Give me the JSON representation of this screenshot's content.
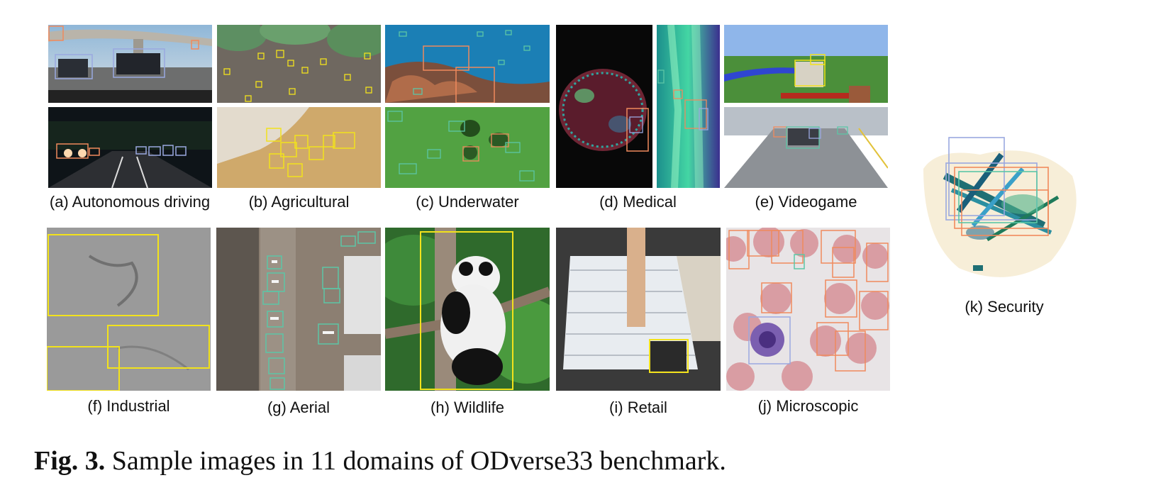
{
  "figure": {
    "label": "Fig. 3.",
    "text": "Sample images in 11 domains of ODverse33 benchmark."
  },
  "panels": [
    {
      "id": "a",
      "caption": "(a) Autonomous driving"
    },
    {
      "id": "b",
      "caption": "(b) Agricultural"
    },
    {
      "id": "c",
      "caption": "(c) Underwater"
    },
    {
      "id": "d",
      "caption": "(d) Medical"
    },
    {
      "id": "e",
      "caption": "(e) Videogame"
    },
    {
      "id": "f",
      "caption": "(f) Industrial"
    },
    {
      "id": "g",
      "caption": "(g) Aerial"
    },
    {
      "id": "h",
      "caption": "(h) Wildlife"
    },
    {
      "id": "i",
      "caption": "(i) Retail"
    },
    {
      "id": "j",
      "caption": "(j) Microscopic"
    },
    {
      "id": "k",
      "caption": "(k) Security"
    }
  ],
  "colors": {
    "box_yellow": "#f2e21c",
    "box_orange": "#f08a5d",
    "box_blue": "#9aa8e0",
    "box_teal": "#5cc6a6"
  }
}
